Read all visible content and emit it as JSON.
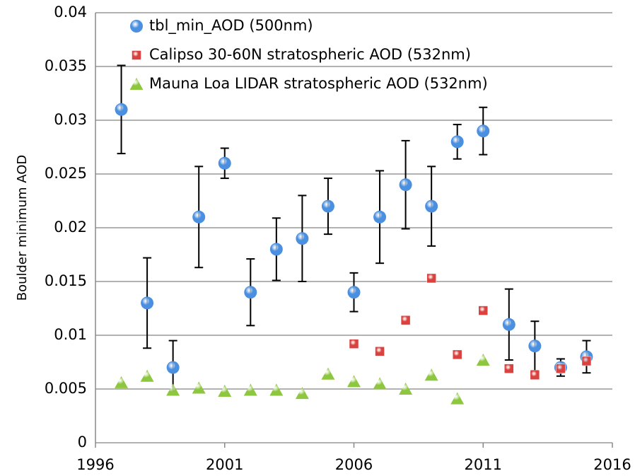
{
  "chart_data": {
    "type": "scatter",
    "y_label": "Boulder minimum AOD",
    "xlim": [
      1996,
      2016
    ],
    "xticks": [
      1996,
      2001,
      2006,
      2011,
      2016
    ],
    "ylim": [
      0,
      0.04
    ],
    "yticks": [
      0,
      0.005,
      0.01,
      0.015,
      0.02,
      0.025,
      0.03,
      0.035,
      0.04
    ],
    "grid": true,
    "legend": "upper left",
    "series": [
      {
        "name": "tbl_min_AOD (500nm)",
        "color": "#4a8fe0",
        "marker": "circle",
        "x": [
          1997,
          1998,
          1999,
          2000,
          2001,
          2002,
          2003,
          2004,
          2005,
          2006,
          2007,
          2008,
          2009,
          2010,
          2011,
          2012,
          2013,
          2014,
          2015
        ],
        "values": [
          0.031,
          0.013,
          0.007,
          0.021,
          0.026,
          0.014,
          0.018,
          0.019,
          0.022,
          0.014,
          0.021,
          0.024,
          0.022,
          0.028,
          0.029,
          0.011,
          0.009,
          0.007,
          0.008
        ],
        "errors": [
          0.0041,
          0.0042,
          0.0025,
          0.0047,
          0.0014,
          0.0031,
          0.0029,
          0.004,
          0.0026,
          0.0018,
          0.0043,
          0.0041,
          0.0037,
          0.0016,
          0.0022,
          0.0033,
          0.0023,
          0.0008,
          0.0015
        ]
      },
      {
        "name": "Calipso 30-60N stratospheric AOD (532nm)",
        "color": "#d9423e",
        "marker": "square",
        "x": [
          2006,
          2007,
          2008,
          2009,
          2010,
          2011,
          2012,
          2013,
          2014,
          2015
        ],
        "values": [
          0.0092,
          0.0085,
          0.0114,
          0.0153,
          0.0082,
          0.0123,
          0.0069,
          0.0063,
          0.0069,
          0.0076
        ]
      },
      {
        "name": "Mauna Loa LIDAR stratospheric AOD (532nm)",
        "color": "#8dc63f",
        "marker": "triangle",
        "x": [
          1997,
          1998,
          1999,
          2000,
          2001,
          2002,
          2003,
          2004,
          2005,
          2006,
          2007,
          2008,
          2009,
          2010,
          2011
        ],
        "values": [
          0.0056,
          0.0062,
          0.0049,
          0.0051,
          0.0048,
          0.0049,
          0.0049,
          0.0046,
          0.0064,
          0.0057,
          0.0055,
          0.005,
          0.0063,
          0.0041,
          0.0077
        ]
      }
    ]
  }
}
